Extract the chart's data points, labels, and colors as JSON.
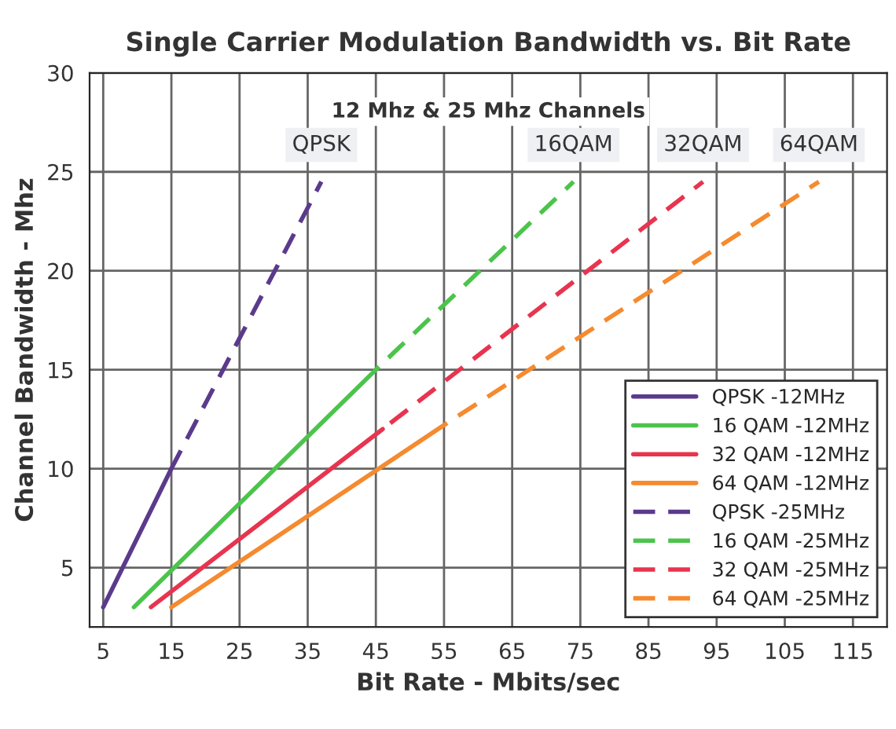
{
  "chart_data": {
    "type": "line",
    "title": "Single Carrier Modulation Bandwidth vs. Bit Rate",
    "xlabel": "Bit Rate - Mbits/sec",
    "ylabel": "Channel Bandwidth - Mhz",
    "annotations": [
      "12 Mhz & 25 Mhz Channels",
      "QPSK",
      "16QAM",
      "32QAM",
      "64QAM"
    ],
    "series": [
      {
        "name": "QPSK -12MHz",
        "color": "#5b3a8c",
        "line_style": "solid",
        "x": [
          5,
          15
        ],
        "values": [
          3,
          10
        ]
      },
      {
        "name": "16 QAM -12MHz",
        "color": "#4cc44c",
        "line_style": "solid",
        "x": [
          9.5,
          45
        ],
        "values": [
          3,
          15
        ]
      },
      {
        "name": "32 QAM -12MHz",
        "color": "#e8344f",
        "line_style": "solid",
        "x": [
          12,
          46
        ],
        "values": [
          3,
          12
        ]
      },
      {
        "name": "64 QAM -12MHz",
        "color": "#f58a2f",
        "line_style": "solid",
        "x": [
          15,
          55
        ],
        "values": [
          3,
          12.2
        ]
      },
      {
        "name": "QPSK -25MHz",
        "color": "#5b3a8c",
        "line_style": "dashed",
        "x": [
          15,
          37
        ],
        "values": [
          10,
          24.5
        ]
      },
      {
        "name": "16 QAM -25MHz",
        "color": "#4cc44c",
        "line_style": "dashed",
        "x": [
          45,
          74
        ],
        "values": [
          15,
          24.5
        ]
      },
      {
        "name": "32 QAM -25MHz",
        "color": "#e8344f",
        "line_style": "dashed",
        "x": [
          46,
          93
        ],
        "values": [
          12,
          24.5
        ]
      },
      {
        "name": "64 QAM -25MHz",
        "color": "#f58a2f",
        "line_style": "dashed",
        "x": [
          55,
          110
        ],
        "values": [
          12.2,
          24.5
        ]
      }
    ],
    "xlim": [
      3,
      120
    ],
    "ylim": [
      2,
      30
    ],
    "xticks": [
      5,
      15,
      25,
      35,
      45,
      55,
      65,
      75,
      85,
      95,
      105,
      115
    ],
    "yticks": [
      5,
      10,
      15,
      20,
      25,
      30
    ],
    "grid": true,
    "legend": "bottom right",
    "marker": "none"
  }
}
